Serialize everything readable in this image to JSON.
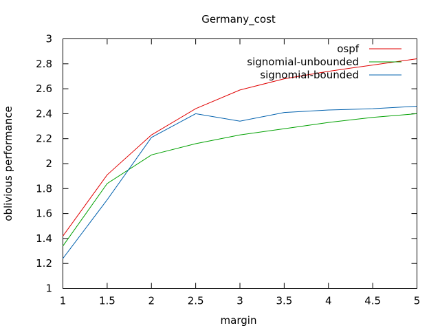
{
  "chart_data": {
    "type": "line",
    "title": "Germany_cost",
    "xlabel": "margin",
    "ylabel": "oblivious performance",
    "xlim": [
      1,
      5
    ],
    "ylim": [
      1,
      3
    ],
    "x_ticks": [
      "1",
      "1.5",
      "2",
      "2.5",
      "3",
      "3.5",
      "4",
      "4.5",
      "5"
    ],
    "y_ticks": [
      "1",
      "1.2",
      "1.4",
      "1.6",
      "1.8",
      "2",
      "2.2",
      "2.4",
      "2.6",
      "2.8",
      "3"
    ],
    "grid": false,
    "legend": "top-right",
    "x": [
      1,
      1.5,
      2,
      2.5,
      3,
      3.5,
      4,
      4.5,
      5
    ],
    "series": [
      {
        "name": "ospf",
        "color": "#e00000",
        "values": [
          1.42,
          1.91,
          2.23,
          2.44,
          2.59,
          2.68,
          2.74,
          2.79,
          2.84
        ]
      },
      {
        "name": "signomial-unbounded",
        "color": "#00a000",
        "values": [
          1.34,
          1.84,
          2.07,
          2.16,
          2.23,
          2.28,
          2.33,
          2.37,
          2.4
        ]
      },
      {
        "name": "signomial-bounded",
        "color": "#0060ad",
        "values": [
          1.24,
          1.71,
          2.21,
          2.4,
          2.34,
          2.41,
          2.43,
          2.44,
          2.46
        ]
      }
    ]
  }
}
